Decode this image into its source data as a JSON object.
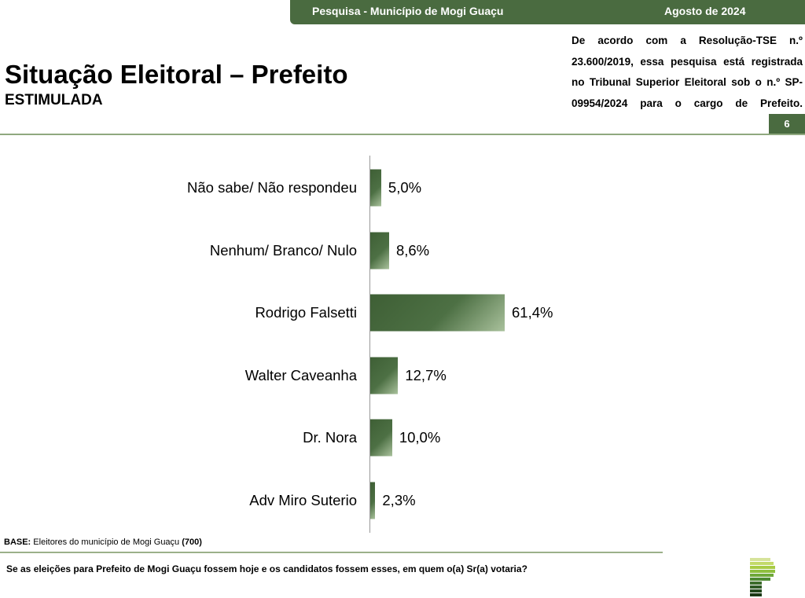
{
  "header": {
    "survey": "Pesquisa - Município de Mogi Guaçu",
    "date": "Agosto de 2024"
  },
  "title": "Situação Eleitoral – Prefeito",
  "subtitle": "ESTIMULADA",
  "registration_note": "De acordo com a Resolução-TSE n.º 23.600/2019, essa pesquisa está registrada no Tribunal Superior Eleitoral sob o n.º SP-09954/2024 para o cargo de Prefeito.",
  "page_number": "6",
  "base": {
    "label": "BASE:",
    "text": " Eleitores do município de Mogi Guaçu ",
    "count": "(700)"
  },
  "question": "Se as eleições para Prefeito de Mogi Guaçu fossem hoje e os candidatos fossem esses, em quem o(a) Sr(a) votaria?",
  "colors": {
    "brand": "#4a6b40",
    "bar": "#4d7044"
  },
  "chart_data": {
    "type": "bar",
    "orientation": "horizontal",
    "categories": [
      "Não sabe/ Não respondeu",
      "Nenhum/ Branco/ Nulo",
      "Rodrigo Falsetti",
      "Walter Caveanha",
      "Dr. Nora",
      "Adv Miro Suterio"
    ],
    "values": [
      5.0,
      8.6,
      61.4,
      12.7,
      10.0,
      2.3
    ],
    "labels": [
      "5,0%",
      "8,6%",
      "61,4%",
      "12,7%",
      "10,0%",
      "2,3%"
    ],
    "unit": "%",
    "grid": false
  }
}
